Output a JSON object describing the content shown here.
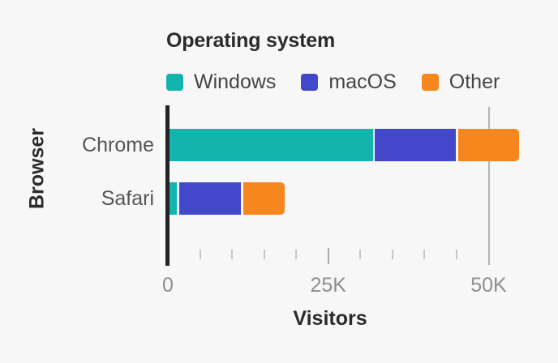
{
  "chart_data": {
    "type": "bar",
    "orientation": "horizontal",
    "stacked": true,
    "legend": {
      "position": "top",
      "title": "Operating system"
    },
    "categories": [
      "Chrome",
      "Safari"
    ],
    "series": [
      {
        "name": "Windows",
        "color": "#12B5AC",
        "values": [
          32000,
          1500
        ]
      },
      {
        "name": "macOS",
        "color": "#4347C9",
        "values": [
          13000,
          10000
        ]
      },
      {
        "name": "Other",
        "color": "#F6861E",
        "values": [
          9500,
          6500
        ]
      }
    ],
    "totals": [
      54500,
      18000
    ],
    "xlabel": "Visitors",
    "ylabel": "Browser",
    "xlim": [
      0,
      55000
    ],
    "xticks": [
      {
        "value": 0,
        "label": "0"
      },
      {
        "value": 25000,
        "label": "25K"
      },
      {
        "value": 50000,
        "label": "50K"
      }
    ],
    "minor_tick_step": 5000,
    "gridlines": [
      50000
    ]
  },
  "colors": {
    "background": "#F7F7F7",
    "axis_line": "#232323",
    "gridline": "#B3B3B3",
    "minor_tick": "#C6C6C6",
    "mid_tick": "#ABABAB",
    "title_text": "#2B2B2B",
    "legend_text": "#454545",
    "category_text": "#555555",
    "tick_text": "#8E8E8E"
  }
}
